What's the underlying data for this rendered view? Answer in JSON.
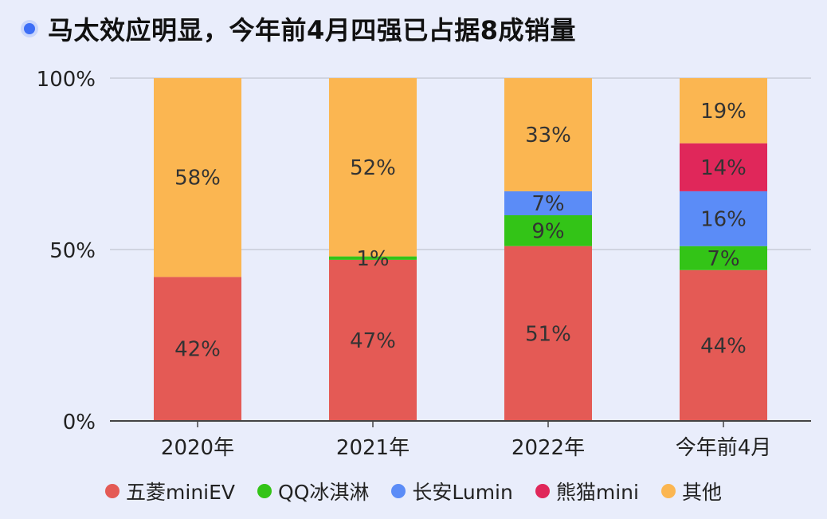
{
  "title": "马太效应明显，今年前4月四强已占据8成销量",
  "colors": {
    "title_dot": "#3d6ef6",
    "background": "#e9edfb"
  },
  "chart_data": {
    "type": "bar",
    "stacked": true,
    "percent_stacked": true,
    "categories": [
      "2020年",
      "2021年",
      "2022年",
      "今年前4月"
    ],
    "ylim": [
      0,
      100
    ],
    "yticks": [
      0,
      50,
      100
    ],
    "ytick_labels": [
      "0%",
      "50%",
      "100%"
    ],
    "grid": true,
    "legend_position": "bottom",
    "series": [
      {
        "name": "五菱miniEV",
        "color": "#e45a55",
        "values": [
          42,
          47,
          51,
          44
        ],
        "labels": [
          "42%",
          "47%",
          "51%",
          "44%"
        ]
      },
      {
        "name": "QQ冰淇淋",
        "color": "#33c417",
        "values": [
          0,
          1,
          9,
          7
        ],
        "labels": [
          "",
          "1%",
          "9%",
          "7%"
        ]
      },
      {
        "name": "长安Lumin",
        "color": "#5b8cf7",
        "values": [
          0,
          0,
          7,
          16
        ],
        "labels": [
          "",
          "",
          "7%",
          "16%"
        ]
      },
      {
        "name": "熊猫mini",
        "color": "#e0275a",
        "values": [
          0,
          0,
          0,
          14
        ],
        "labels": [
          "",
          "",
          "",
          "14%"
        ]
      },
      {
        "name": "其他",
        "color": "#fbb651",
        "values": [
          58,
          52,
          33,
          19
        ],
        "labels": [
          "58%",
          "52%",
          "33%",
          "19%"
        ]
      }
    ]
  }
}
